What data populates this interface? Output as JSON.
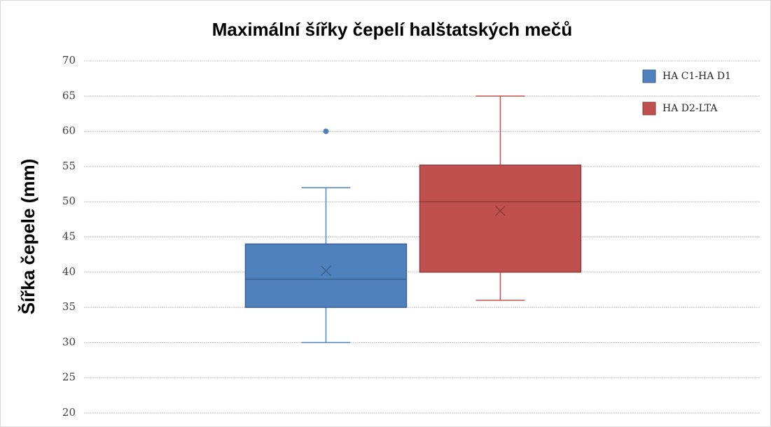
{
  "chart_data": {
    "type": "box",
    "title": "Maximální šířky čepelí halštatských mečů",
    "y_label": "Šířka  čepele (mm)",
    "ylim": [
      20,
      70
    ],
    "yticks": [
      20,
      25,
      30,
      35,
      40,
      45,
      50,
      55,
      60,
      65,
      70
    ],
    "grid": true,
    "legend": "top-right",
    "series": [
      {
        "name": "HA C1-HA D1",
        "color": "#4f81bd",
        "min": 30,
        "q1": 35,
        "median": 39,
        "q3": 44,
        "max": 52,
        "mean": 40.2,
        "outliers": [
          60
        ]
      },
      {
        "name": "HA D2-LTA",
        "color": "#c0504d",
        "min": 36,
        "q1": 40,
        "median": 50,
        "q3": 55.2,
        "max": 65,
        "mean": 48.7,
        "outliers": []
      }
    ]
  }
}
